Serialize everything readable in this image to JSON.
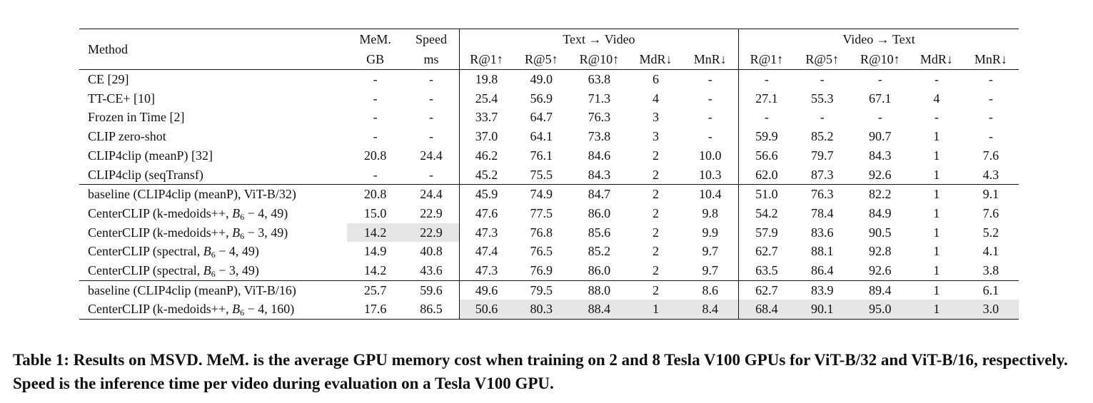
{
  "header": {
    "method": "Method",
    "mem_top": "MeM.",
    "mem_bottom": "GB",
    "speed_top": "Speed",
    "speed_bottom": "ms",
    "t2v": "Text → Video",
    "v2t": "Video → Text",
    "metrics": [
      "R@1↑",
      "R@5↑",
      "R@10↑",
      "MdR↓",
      "MnR↓",
      "R@1↑",
      "R@5↑",
      "R@10↑",
      "MdR↓",
      "MnR↓"
    ]
  },
  "groups": [
    {
      "rows": [
        {
          "method": "CE [29]",
          "cells": [
            "-",
            "-",
            "19.8",
            "49.0",
            "63.8",
            "6",
            "-",
            "-",
            "-",
            "-",
            "-",
            "-"
          ]
        },
        {
          "method": "TT-CE+ [10]",
          "cells": [
            "-",
            "-",
            "25.4",
            "56.9",
            "71.3",
            "4",
            "-",
            "27.1",
            "55.3",
            "67.1",
            "4",
            "-"
          ]
        },
        {
          "method": "Frozen in Time [2]",
          "cells": [
            "-",
            "-",
            "33.7",
            "64.7",
            "76.3",
            "3",
            "-",
            "-",
            "-",
            "-",
            "-",
            "-"
          ]
        },
        {
          "method": "CLIP zero-shot",
          "cells": [
            "-",
            "-",
            "37.0",
            "64.1",
            "73.8",
            "3",
            "-",
            "59.9",
            "85.2",
            "90.7",
            "1",
            "-"
          ]
        },
        {
          "method": "CLIP4clip (meanP) [32]",
          "cells": [
            "20.8",
            "24.4",
            "46.2",
            "76.1",
            "84.6",
            "2",
            "10.0",
            "56.6",
            "79.7",
            "84.3",
            "1",
            "7.6"
          ]
        },
        {
          "method": "CLIP4clip (seqTransf)",
          "cells": [
            "-",
            "-",
            "45.2",
            "75.5",
            "84.3",
            "2",
            "10.3",
            "62.0",
            "87.3",
            "92.6",
            "1",
            "4.3"
          ]
        }
      ]
    },
    {
      "rows": [
        {
          "method": "baseline (CLIP4clip (meanP), ViT-B/32)",
          "cells": [
            "20.8",
            "24.4",
            "45.9",
            "74.9",
            "84.7",
            "2",
            "10.4",
            "51.0",
            "76.3",
            "82.2",
            "1",
            "9.1"
          ]
        },
        {
          "method_pre": "CenterCLIP (k-medoids++, ",
          "method_sym": "B",
          "method_sub": "6",
          "method_post": " − 4, 49)",
          "cells": [
            "15.0",
            "22.9",
            "47.6",
            "77.5",
            "86.0",
            "2",
            "9.8",
            "54.2",
            "78.4",
            "84.9",
            "1",
            "7.6"
          ]
        },
        {
          "method_pre": "CenterCLIP (k-medoids++, ",
          "method_sym": "B",
          "method_sub": "6",
          "method_post": " − 3, 49)",
          "cells": [
            "14.2",
            "22.9",
            "47.3",
            "76.8",
            "85.6",
            "2",
            "9.9",
            "57.9",
            "83.6",
            "90.5",
            "1",
            "5.2"
          ]
        },
        {
          "method_pre": "CenterCLIP (spectral, ",
          "method_sym": "B",
          "method_sub": "6",
          "method_post": " − 4, 49)",
          "cells": [
            "14.9",
            "40.8",
            "47.4",
            "76.5",
            "85.2",
            "2",
            "9.7",
            "62.7",
            "88.1",
            "92.8",
            "1",
            "4.1"
          ]
        },
        {
          "method_pre": "CenterCLIP (spectral, ",
          "method_sym": "B",
          "method_sub": "6",
          "method_post": " − 3, 49)",
          "cells": [
            "14.2",
            "43.6",
            "47.3",
            "76.9",
            "86.0",
            "2",
            "9.7",
            "63.5",
            "86.4",
            "92.6",
            "1",
            "3.8"
          ]
        }
      ]
    },
    {
      "rows": [
        {
          "method": "baseline (CLIP4clip (meanP), ViT-B/16)",
          "cells": [
            "25.7",
            "59.6",
            "49.6",
            "79.5",
            "88.0",
            "2",
            "8.6",
            "62.7",
            "83.9",
            "89.4",
            "1",
            "6.1"
          ]
        },
        {
          "method_pre": "CenterCLIP (k-medoids++, ",
          "method_sym": "B",
          "method_sub": "6",
          "method_post": " − 4, 160)",
          "cells": [
            "17.6",
            "86.5",
            "50.6",
            "80.3",
            "88.4",
            "1",
            "8.4",
            "68.4",
            "90.1",
            "95.0",
            "1",
            "3.0"
          ]
        }
      ]
    }
  ],
  "caption": "Table 1: Results on MSVD. MeM. is the average GPU memory cost when training on 2 and 8 Tesla V100 GPUs for ViT-B/32 and ViT-B/16, respectively. Speed is the inference time per video during evaluation on a Tesla V100 GPU."
}
